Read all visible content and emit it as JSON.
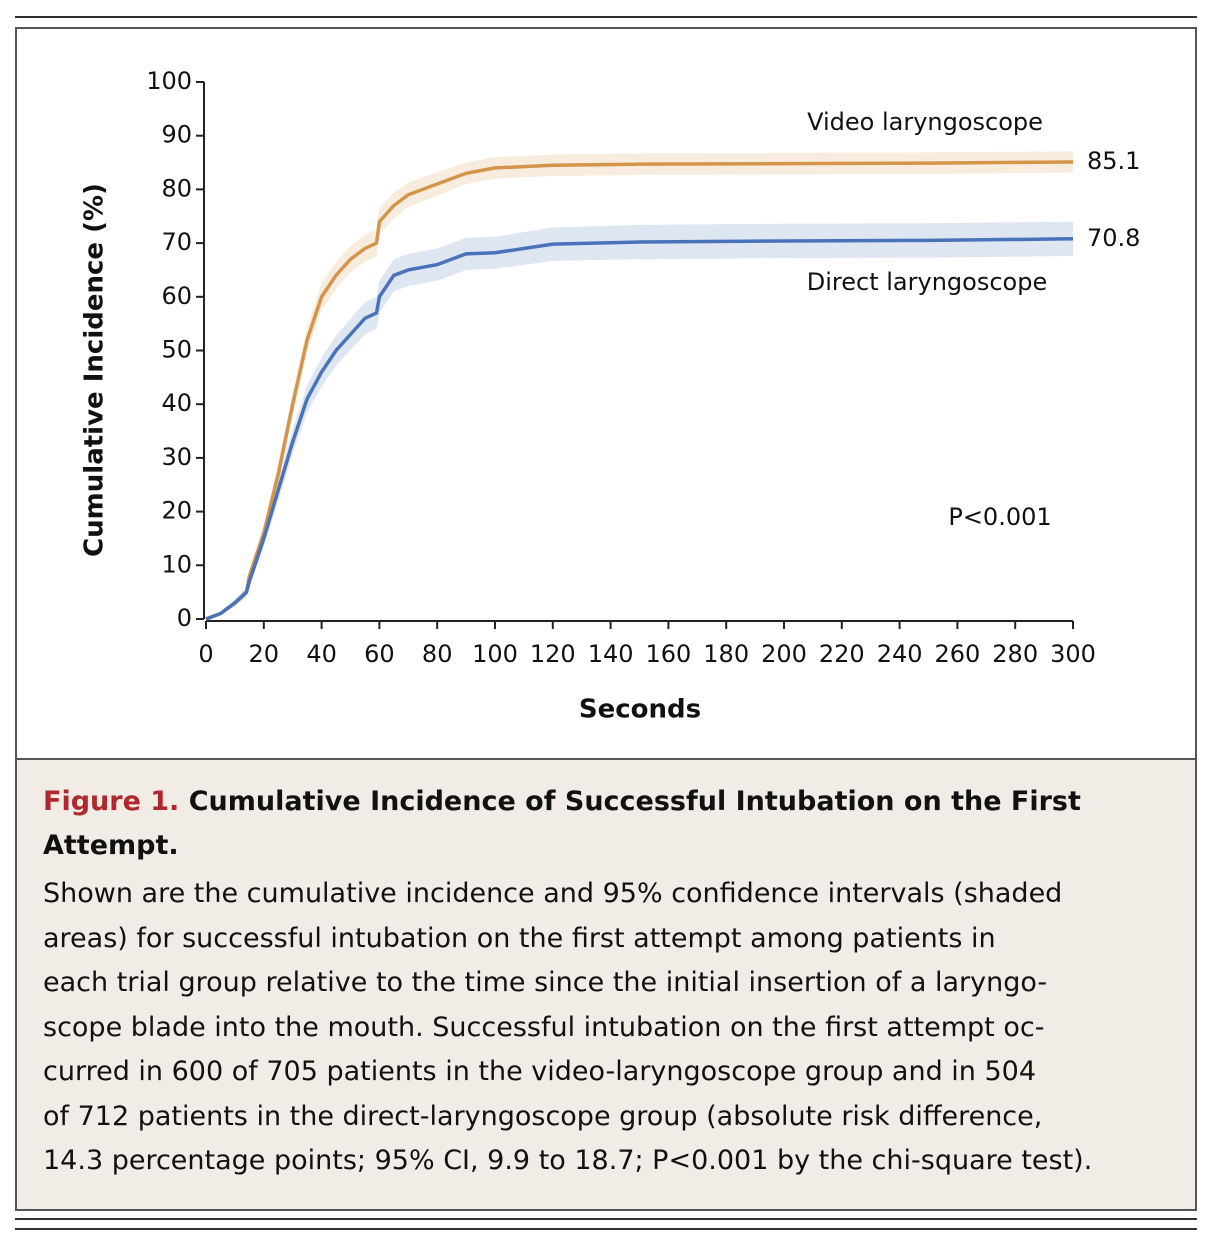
{
  "chart_data": {
    "type": "line",
    "xlabel": "Seconds",
    "ylabel": "Cumulative Incidence (%)",
    "annotation": "P<0.001",
    "x": [
      0,
      5,
      10,
      14,
      15,
      20,
      25,
      30,
      35,
      40,
      45,
      50,
      55,
      59,
      60,
      65,
      70,
      80,
      90,
      100,
      120,
      150,
      200,
      250,
      300
    ],
    "series": [
      {
        "name": "Video laryngoscope",
        "color": "#d4954a",
        "values": [
          0,
          1,
          3,
          5,
          8,
          16,
          27,
          40,
          52,
          60,
          64,
          67,
          69,
          70,
          74,
          77,
          79,
          81,
          83,
          84,
          84.5,
          84.7,
          84.8,
          84.9,
          85.1
        ],
        "lower": [
          0,
          0.7,
          2.4,
          4.2,
          7,
          14.5,
          25,
          37.8,
          49.6,
          57.5,
          61.5,
          64.5,
          66.5,
          67.5,
          71.5,
          74.6,
          76.7,
          78.8,
          81,
          82,
          82.5,
          82.7,
          82.8,
          82.9,
          83.1
        ],
        "upper": [
          0,
          1.3,
          3.6,
          5.8,
          9,
          17.5,
          29,
          42.2,
          54.4,
          62.5,
          66.5,
          69.5,
          71.5,
          72.5,
          76.5,
          79.4,
          81.3,
          83.2,
          85,
          86,
          86.5,
          86.7,
          86.8,
          86.9,
          87.1
        ]
      },
      {
        "name": "Direct laryngoscope",
        "color": "#4a72b8",
        "values": [
          0,
          1,
          3,
          5,
          7,
          15,
          24,
          33,
          41,
          46,
          50,
          53,
          56,
          57,
          60,
          64,
          65,
          66,
          68,
          68.2,
          69.8,
          70.2,
          70.4,
          70.5,
          70.8
        ],
        "lower": [
          0,
          0.7,
          2.4,
          4.2,
          6,
          13.5,
          22,
          30.7,
          38.5,
          43.3,
          47.2,
          50.1,
          53,
          54,
          57,
          61,
          62,
          63,
          65,
          65.2,
          66.7,
          67,
          67.2,
          67.3,
          67.6
        ],
        "upper": [
          0,
          1.3,
          3.6,
          5.8,
          8,
          16.5,
          26,
          35.3,
          43.5,
          48.7,
          52.8,
          55.9,
          59,
          60,
          63,
          67,
          68,
          69,
          71,
          71.2,
          72.9,
          73.4,
          73.6,
          73.7,
          74
        ]
      }
    ],
    "xlim": [
      0,
      300
    ],
    "xticks": [
      0,
      20,
      40,
      60,
      80,
      100,
      120,
      140,
      160,
      180,
      200,
      220,
      240,
      260,
      280,
      300
    ],
    "ylim": [
      0,
      100
    ],
    "yticks": [
      0,
      10,
      20,
      30,
      40,
      50,
      60,
      70,
      80,
      90,
      100
    ]
  },
  "caption": {
    "label": "Figure 1.",
    "title": "Cumulative Incidence of Successful Intubation on the First Attempt.",
    "lines": [
      "Shown are the cumulative incidence and 95% confidence intervals (shaded",
      "areas) for successful intubation on the first attempt among patients in",
      "each trial group relative to the time since the initial insertion of a laryngo-",
      "scope blade into the mouth. Successful intubation on the first attempt oc-",
      "curred in 600 of 705 patients in the video-laryngoscope group and in 504",
      "of 712 patients in the direct-laryngoscope group (absolute risk difference,",
      "14.3 percentage points; 95% CI, 9.9 to 18.7; P<0.001 by the chi-square test)."
    ]
  }
}
